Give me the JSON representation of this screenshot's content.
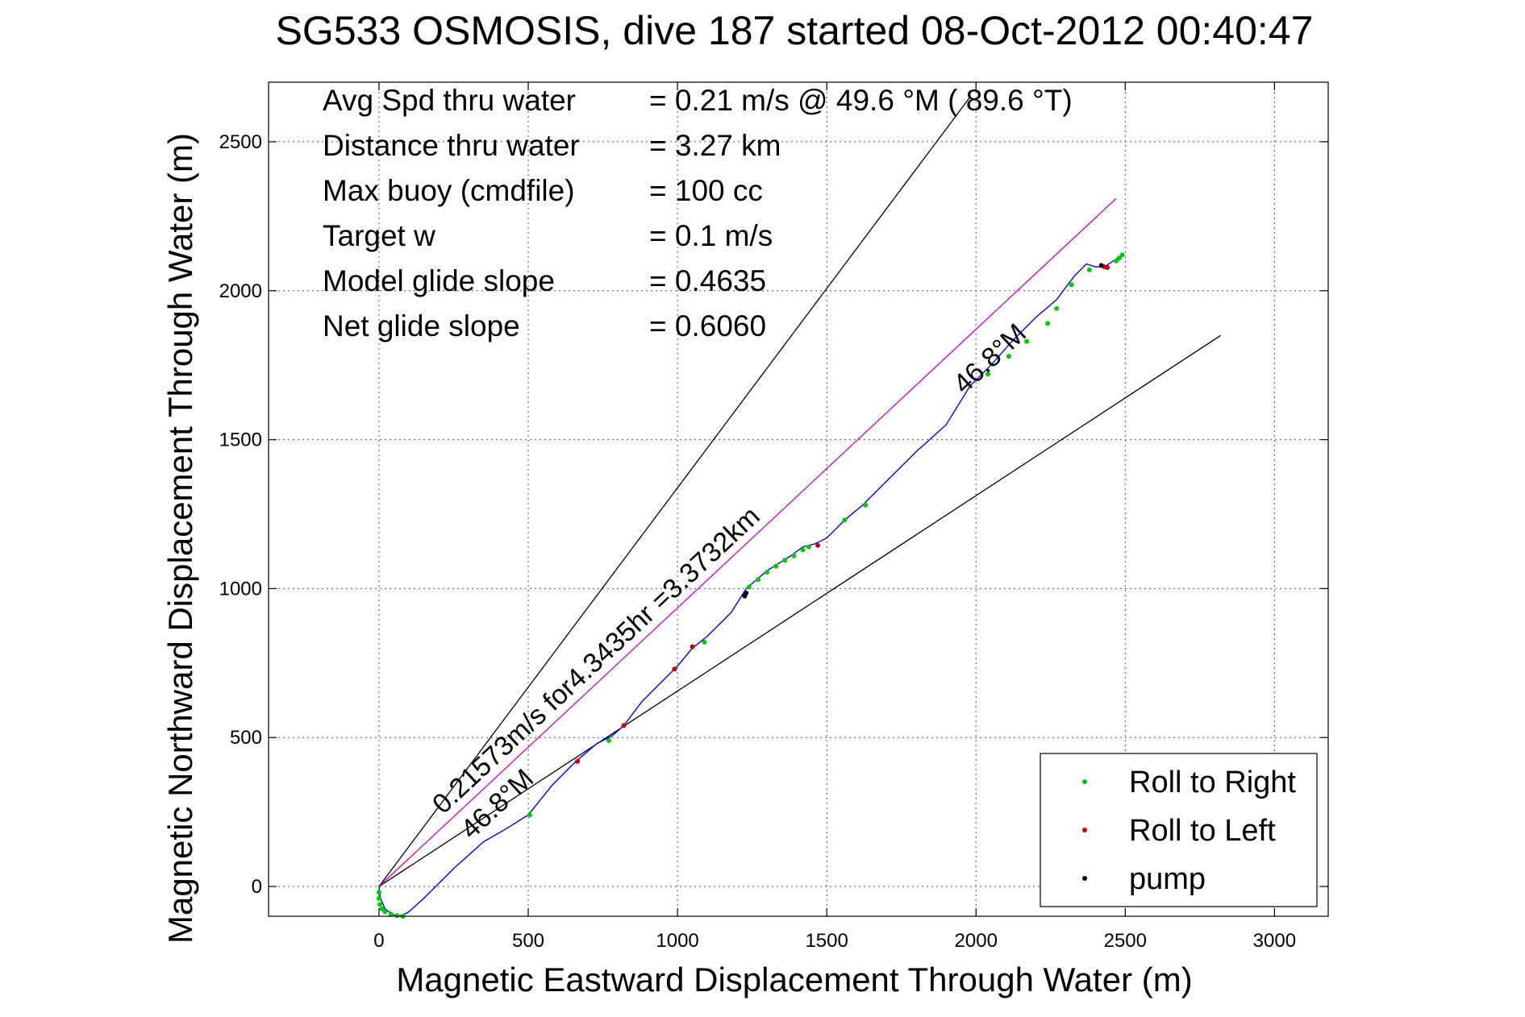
{
  "chart_data": {
    "type": "line",
    "title": "SG533 OSMOSIS, dive 187 started 08-Oct-2012 00:40:47",
    "xlabel": "Magnetic Eastward Displacement Through Water (m)",
    "ylabel": "Magnetic Northward Displacement Through Water (m)",
    "xlim": [
      -370,
      3180
    ],
    "ylim": [
      -100,
      2700
    ],
    "xticks": [
      0,
      500,
      1000,
      1500,
      2000,
      2500,
      3000
    ],
    "xtick_labels": [
      "0",
      "500",
      "1000",
      "1500",
      "2000",
      "2500",
      "3000"
    ],
    "yticks": [
      0,
      500,
      1000,
      1500,
      2000,
      2500
    ],
    "ytick_labels": [
      "0",
      "500",
      "1000",
      "1500",
      "2000",
      "2500"
    ],
    "grid": true,
    "legend_position": "bottom-right",
    "stats": [
      {
        "label": "Avg Spd thru water",
        "value": "=  0.21 m/s @  49.6 °M ( 89.6 °T)"
      },
      {
        "label": "Distance thru water",
        "value": "=  3.27 km"
      },
      {
        "label": "Max buoy (cmdfile)",
        "value": "= 100 cc"
      },
      {
        "label": "Target w",
        "value": "= 0.1 m/s"
      },
      {
        "label": "Model glide slope",
        "value": "= 0.4635"
      },
      {
        "label": "Net glide slope",
        "value": "= 0.6060"
      }
    ],
    "reference_lines": [
      {
        "x": [
          0,
          1980
        ],
        "y": [
          0,
          2650
        ],
        "color": "#000000"
      },
      {
        "x": [
          0,
          2820
        ],
        "y": [
          0,
          1850
        ],
        "color": "#000000"
      },
      {
        "x": [
          0,
          2470
        ],
        "y": [
          0,
          2310
        ],
        "color": "#cc00cc"
      }
    ],
    "annotations": [
      {
        "text": "0.21573m/s for4.3435hr =3.3732km",
        "x": 215,
        "y": 240,
        "angle_deg": -43
      },
      {
        "text": "46.8°M",
        "x": 310,
        "y": 155,
        "angle_deg": -43
      },
      {
        "text": "46.8°M",
        "x": 1960,
        "y": 1650,
        "angle_deg": -43
      }
    ],
    "track": {
      "name": "",
      "color": "#0000ff",
      "x": [
        0,
        5,
        20,
        40,
        60,
        80,
        100,
        150,
        250,
        350,
        420,
        500,
        580,
        660,
        730,
        780,
        820,
        880,
        960,
        1000,
        1050,
        1100,
        1180,
        1230,
        1300,
        1380,
        1420,
        1460,
        1500,
        1560,
        1620,
        1700,
        1800,
        1900,
        1980,
        2050,
        2120,
        2200,
        2270,
        2330,
        2370,
        2400,
        2430,
        2460,
        2490
      ],
      "y": [
        0,
        -40,
        -75,
        -90,
        -100,
        -95,
        -85,
        -40,
        60,
        150,
        190,
        240,
        340,
        420,
        480,
        505,
        540,
        620,
        700,
        740,
        800,
        840,
        920,
        1000,
        1060,
        1110,
        1140,
        1150,
        1170,
        1230,
        1280,
        1360,
        1460,
        1550,
        1680,
        1750,
        1830,
        1910,
        1970,
        2050,
        2090,
        2080,
        2080,
        2100,
        2120
      ]
    },
    "roll_right": {
      "color": "#00cc00",
      "x": [
        0,
        0,
        3,
        10,
        20,
        40,
        60,
        80,
        505,
        770,
        1090,
        1240,
        1270,
        1300,
        1330,
        1360,
        1390,
        1420,
        1440,
        1560,
        1630,
        2040,
        2110,
        2170,
        2240,
        2270,
        2320,
        2380,
        2470,
        2480,
        2490
      ],
      "y": [
        -20,
        -40,
        -60,
        -75,
        -85,
        -93,
        -98,
        -100,
        240,
        490,
        820,
        1005,
        1030,
        1055,
        1075,
        1095,
        1110,
        1130,
        1140,
        1230,
        1280,
        1720,
        1780,
        1830,
        1890,
        1940,
        2020,
        2070,
        2100,
        2110,
        2120
      ]
    },
    "roll_left": {
      "color": "#cc0000",
      "x": [
        665,
        820,
        990,
        1050,
        1470,
        2430,
        2440
      ],
      "y": [
        420,
        540,
        730,
        805,
        1145,
        2080,
        2078
      ]
    },
    "pump": {
      "color": "#000000",
      "x": [
        1225,
        1230,
        2420
      ],
      "y": [
        975,
        985,
        2085
      ]
    },
    "legend": [
      {
        "label": "Roll to Right",
        "color": "#00cc00"
      },
      {
        "label": "Roll to Left",
        "color": "#cc0000"
      },
      {
        "label": "pump",
        "color": "#000000"
      }
    ]
  }
}
